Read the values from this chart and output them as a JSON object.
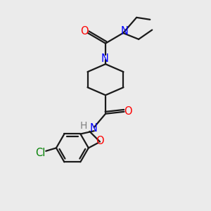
{
  "bg_color": "#ebebeb",
  "bond_color": "#1a1a1a",
  "N_color": "#0000ff",
  "O_color": "#ff0000",
  "Cl_color": "#008000",
  "H_color": "#808080",
  "line_width": 1.6,
  "font_size": 10.5,
  "xlim": [
    0,
    10
  ],
  "ylim": [
    0,
    10
  ]
}
